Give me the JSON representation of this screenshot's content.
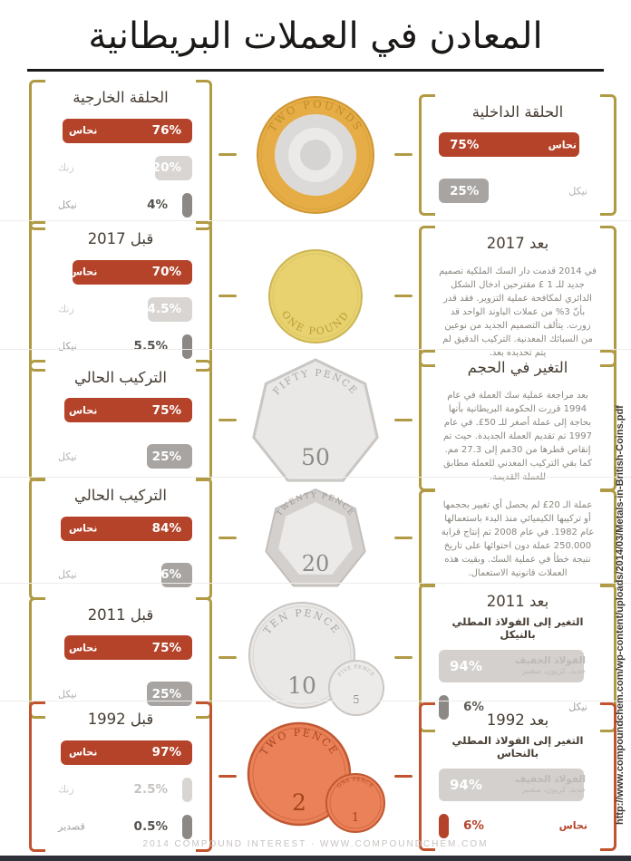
{
  "title": "المعادن في العملات البريطانية",
  "footer": {
    "credit": "2014 COMPOUND INTEREST · WWW.COMPOUNDCHEM.COM"
  },
  "side_url": "http://www.compoundchem.com/wp-content/uploads/2014/03/Metals-in-British-Coins.pdf",
  "colors": {
    "copper_red": "#b4432a",
    "gold_bracket": "#b09a44",
    "red_bracket": "#c1532f",
    "light_gray_bar": "#d8d5d2",
    "mid_gray_bar": "#a7a4a1",
    "dark_gray_bar": "#8b8885",
    "steel_bar": "#d3d0cd",
    "two_pound_gold": "#e6ac46",
    "one_pound_gold": "#e8d26f",
    "silver_coin": "#eae8e6",
    "copper_coin": "#eb8159"
  },
  "rows": [
    {
      "coin": {
        "label": "TWO POUNDS"
      },
      "left": {
        "heading": "الحلقة الخارجية",
        "bars": [
          {
            "label": "نحاس",
            "value": "76%",
            "pct": 76
          },
          {
            "label": "زنك",
            "value": "20%",
            "pct": 20
          },
          {
            "label": "نيكل",
            "value": "4%",
            "pct": 4
          }
        ]
      },
      "right": {
        "heading": "الحلقة الداخلية",
        "bars": [
          {
            "label": "نحاس",
            "value": "75%",
            "pct": 75
          },
          {
            "label": "نيكل",
            "value": "25%",
            "pct": 25
          }
        ]
      }
    },
    {
      "coin": {
        "label": "ONE POUND"
      },
      "left": {
        "heading": "قبل 2017",
        "bars": [
          {
            "label": "نحاس",
            "value": "70%",
            "pct": 70
          },
          {
            "label": "زنك",
            "value": "24.5%",
            "pct": 24.5
          },
          {
            "label": "نيكل",
            "value": "5.5%",
            "pct": 5.5
          }
        ]
      },
      "right": {
        "heading": "بعد 2017",
        "text": "في 2014 قدمت دار السك الملكية تصميم جديد للـ 1 £ مقترحين ادخال الشكل الدائري لمكافحة عملية التزوير. فقد قدر بأنّ 3% من عملات الباوند الواحد قد زورت. يتألف التصميم الجديد من نوعين من السبائك المعدنية. التركيب الدقيق لم يتم تحديده بعد."
      }
    },
    {
      "coin": {
        "label": "FIFTY PENCE",
        "denom": "50"
      },
      "left": {
        "heading": "التركيب الحالي",
        "bars": [
          {
            "label": "نحاس",
            "value": "75%",
            "pct": 75
          },
          {
            "label": "نيكل",
            "value": "25%",
            "pct": 25
          }
        ]
      },
      "right": {
        "heading": "التغير في الحجم",
        "text": "بعد مراجعة عملية سك العملة في عام 1994 قررت الحكومة البريطانية بأنها بحاجة إلى عملة أصغر للـ 50£. في عام 1997 تم تقديم العملة الجديدة. حيث تم إنقاص قطرها من 30مم إلى 27.3 مم. كما بقي التركيب المعدني للعملة مطابق للعملة القديمة."
      }
    },
    {
      "coin": {
        "label": "TWENTY PENCE",
        "denom": "20"
      },
      "left": {
        "heading": "التركيب الحالي",
        "bars": [
          {
            "label": "نحاس",
            "value": "84%",
            "pct": 84
          },
          {
            "label": "نيكل",
            "value": "16%",
            "pct": 16
          }
        ]
      },
      "right": {
        "text": "عملة الـ 20£ لم يحصل أي تغيير بحجمها أو تركيبها الكيميائي منذ البدء باستعمالها عام 1982. في عام 2008 تم إنتاج قرابة 250.000 عملة دون احتوائها على تاريخ نتيجة خطأ في عملية السك. وبقيت هذه العملات قانونية الاستعمال."
      }
    },
    {
      "coin": {
        "label": "TEN PENCE",
        "denom": "10",
        "small_label": "FIVE PENCE",
        "small_denom": "5"
      },
      "left": {
        "heading": "قبل 2011",
        "bars": [
          {
            "label": "نحاس",
            "value": "75%",
            "pct": 75
          },
          {
            "label": "نيكل",
            "value": "25%",
            "pct": 25
          }
        ]
      },
      "right": {
        "heading": "بعد 2011",
        "subheading": "التغير إلى الفولاذ المطلي بالنيكل",
        "bars": [
          {
            "label": "الفولاذ الخفيف",
            "sublabel": "حديد، كربون، منغنيز",
            "value": "94%",
            "pct": 94
          },
          {
            "label": "نيكل",
            "value": "6%",
            "pct": 6
          }
        ]
      }
    },
    {
      "coin": {
        "label": "TWO PENCE",
        "denom": "2",
        "small_label": "ONE PENCE",
        "small_denom": "1"
      },
      "left": {
        "heading": "قبل 1992",
        "bars": [
          {
            "label": "نحاس",
            "value": "97%",
            "pct": 97
          },
          {
            "label": "زنك",
            "value": "2.5%",
            "pct": 2.5
          },
          {
            "label": "قصدير",
            "value": "0.5%",
            "pct": 0.5
          }
        ]
      },
      "right": {
        "heading": "بعد 1992",
        "subheading": "التغير إلى الفولاذ المطلي بالنحاس",
        "bars": [
          {
            "label": "الفولاذ الخفيف",
            "sublabel": "حديد، كربون، منغنيز",
            "value": "94%",
            "pct": 94
          },
          {
            "label": "نحاس",
            "value": "6%",
            "pct": 6
          }
        ]
      }
    }
  ]
}
